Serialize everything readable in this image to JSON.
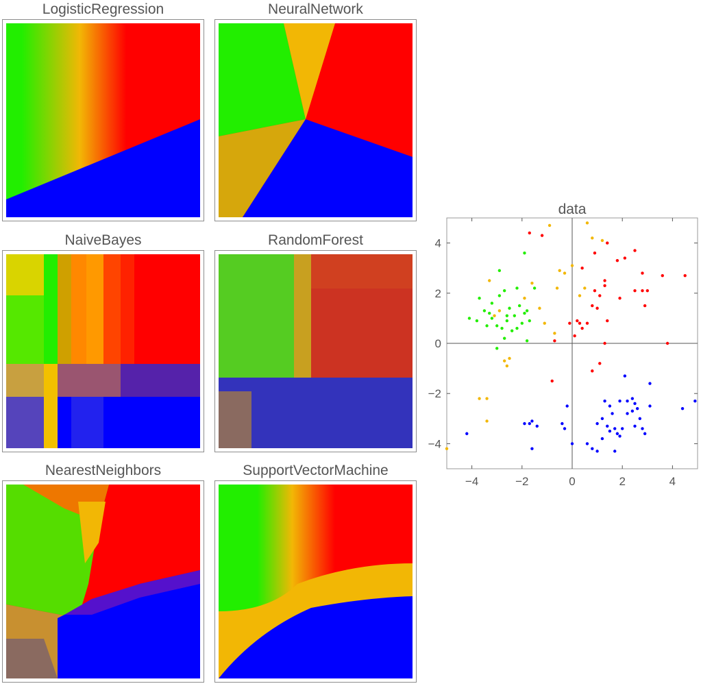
{
  "colors": {
    "green": "#22ee00",
    "gold": "#f2b705",
    "red": "#ff0000",
    "blue": "#0000ff",
    "axis": "#555555"
  },
  "panels": [
    {
      "id": "logistic",
      "title": "LogisticRegression"
    },
    {
      "id": "neural",
      "title": "NeuralNetwork"
    },
    {
      "id": "bayes",
      "title": "NaiveBayes"
    },
    {
      "id": "forest",
      "title": "RandomForest"
    },
    {
      "id": "nearest",
      "title": "NearestNeighbors"
    },
    {
      "id": "svm",
      "title": "SupportVectorMachine"
    }
  ],
  "chart_data": {
    "type": "scatter",
    "title": "data",
    "xlim": [
      -5,
      5
    ],
    "ylim": [
      -5,
      5
    ],
    "xticks": [
      "-4",
      "-2",
      "0",
      "2",
      "4"
    ],
    "yticks": [
      "4",
      "2",
      "0",
      "-2",
      "-4"
    ],
    "series": [
      {
        "color": "#22ee00",
        "points": [
          [
            -3.7,
            1.8
          ],
          [
            -3.2,
            1.6
          ],
          [
            -3.3,
            1.2
          ],
          [
            -2.9,
            1.9
          ],
          [
            -2.7,
            2.1
          ],
          [
            -2.5,
            1.4
          ],
          [
            -2.3,
            1.1
          ],
          [
            -2.1,
            1.5
          ],
          [
            -1.9,
            1.2
          ],
          [
            -2.6,
            0.9
          ],
          [
            -3.0,
            0.7
          ],
          [
            -2.8,
            0.6
          ],
          [
            -2.4,
            0.5
          ],
          [
            -1.8,
            1.3
          ],
          [
            -1.7,
            0.9
          ],
          [
            -2.2,
            2.2
          ],
          [
            -3.5,
            1.3
          ],
          [
            -3.8,
            0.9
          ],
          [
            -2.0,
            0.8
          ],
          [
            -1.5,
            2.2
          ],
          [
            -2.9,
            2.9
          ],
          [
            -3.2,
            1.0
          ],
          [
            -2.6,
            1.1
          ],
          [
            -1.9,
            3.6
          ],
          [
            -3.0,
            -0.2
          ],
          [
            -2.7,
            0.2
          ],
          [
            -4.1,
            1.0
          ],
          [
            -3.4,
            0.7
          ],
          [
            -2.2,
            0.6
          ],
          [
            -1.8,
            0.1
          ]
        ]
      },
      {
        "color": "#f2b705",
        "points": [
          [
            -5.0,
            -4.2
          ],
          [
            -3.4,
            -2.2
          ],
          [
            -3.7,
            -2.2
          ],
          [
            -3.4,
            -3.1
          ],
          [
            -2.7,
            -0.7
          ],
          [
            -2.5,
            -0.6
          ],
          [
            -2.6,
            -0.9
          ],
          [
            -3.3,
            2.5
          ],
          [
            -1.9,
            1.8
          ],
          [
            -1.6,
            2.4
          ],
          [
            -0.9,
            4.7
          ],
          [
            -0.5,
            2.9
          ],
          [
            -0.3,
            2.8
          ],
          [
            0.6,
            4.8
          ],
          [
            1.2,
            4.1
          ],
          [
            0.8,
            4.2
          ],
          [
            0.5,
            2.2
          ],
          [
            0.3,
            1.9
          ],
          [
            0.0,
            3.1
          ],
          [
            -0.6,
            2.2
          ],
          [
            -1.3,
            1.4
          ],
          [
            -1.1,
            0.8
          ],
          [
            -0.7,
            0.4
          ],
          [
            -2.9,
            1.3
          ],
          [
            -3.1,
            1.1
          ]
        ]
      },
      {
        "color": "#ff0000",
        "points": [
          [
            -1.7,
            4.4
          ],
          [
            -1.2,
            4.3
          ],
          [
            0.4,
            3.0
          ],
          [
            0.9,
            3.6
          ],
          [
            1.4,
            4.0
          ],
          [
            1.8,
            3.3
          ],
          [
            2.1,
            3.4
          ],
          [
            2.5,
            3.7
          ],
          [
            2.8,
            2.8
          ],
          [
            3.6,
            2.7
          ],
          [
            4.5,
            2.7
          ],
          [
            1.3,
            2.5
          ],
          [
            1.3,
            2.3
          ],
          [
            0.9,
            2.1
          ],
          [
            1.1,
            1.9
          ],
          [
            1.9,
            1.8
          ],
          [
            2.8,
            2.1
          ],
          [
            3.0,
            2.1
          ],
          [
            2.9,
            1.5
          ],
          [
            2.5,
            2.1
          ],
          [
            0.2,
            0.9
          ],
          [
            0.3,
            0.8
          ],
          [
            0.4,
            0.6
          ],
          [
            0.8,
            1.5
          ],
          [
            1.0,
            1.4
          ],
          [
            1.4,
            0.9
          ],
          [
            0.1,
            0.3
          ],
          [
            -0.1,
            0.8
          ],
          [
            1.3,
            0.0
          ],
          [
            3.8,
            0.0
          ],
          [
            1.1,
            -0.8
          ],
          [
            0.8,
            -1.1
          ],
          [
            -0.8,
            -1.5
          ],
          [
            -0.7,
            0.1
          ],
          [
            0.6,
            0.8
          ]
        ]
      },
      {
        "color": "#0000ff",
        "points": [
          [
            -4.2,
            -3.6
          ],
          [
            -1.9,
            -3.2
          ],
          [
            -1.7,
            -3.2
          ],
          [
            -1.6,
            -3.1
          ],
          [
            -1.4,
            -3.3
          ],
          [
            -0.4,
            -3.2
          ],
          [
            -0.3,
            -3.4
          ],
          [
            -1.6,
            -4.2
          ],
          [
            -0.2,
            -2.5
          ],
          [
            0.0,
            -4.0
          ],
          [
            0.6,
            -4.0
          ],
          [
            0.8,
            -4.2
          ],
          [
            1.0,
            -4.3
          ],
          [
            1.2,
            -3.8
          ],
          [
            1.4,
            -3.3
          ],
          [
            1.5,
            -3.5
          ],
          [
            1.7,
            -3.4
          ],
          [
            1.8,
            -3.6
          ],
          [
            1.9,
            -3.7
          ],
          [
            1.7,
            -4.3
          ],
          [
            1.3,
            -2.3
          ],
          [
            1.5,
            -2.5
          ],
          [
            1.9,
            -2.3
          ],
          [
            2.2,
            -2.8
          ],
          [
            2.4,
            -2.7
          ],
          [
            2.5,
            -2.4
          ],
          [
            2.6,
            -2.6
          ],
          [
            2.7,
            -3.0
          ],
          [
            2.8,
            -3.4
          ],
          [
            3.1,
            -2.5
          ],
          [
            2.5,
            -3.3
          ],
          [
            2.2,
            -2.3
          ],
          [
            2.1,
            -1.3
          ],
          [
            3.1,
            -1.6
          ],
          [
            4.4,
            -2.6
          ],
          [
            4.9,
            -2.3
          ],
          [
            1.6,
            -2.8
          ],
          [
            1.0,
            -3.2
          ],
          [
            2.0,
            -3.4
          ],
          [
            2.9,
            -3.6
          ],
          [
            1.2,
            -3.0
          ],
          [
            2.4,
            -2.2
          ]
        ]
      }
    ]
  }
}
